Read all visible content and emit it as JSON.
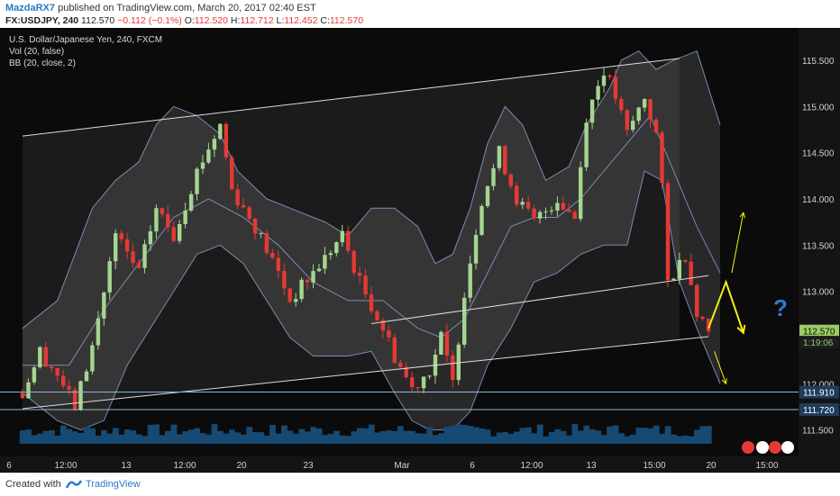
{
  "header": {
    "author": "MazdaRX7",
    "published_text": "published on TradingView.com, March 20, 2017 02:40 EST",
    "symbol": "FX:USDJPY, 240",
    "last": "112.570",
    "change": "−0.112 (−0.1%)",
    "o_label": "O:",
    "o": "112.520",
    "h_label": "H:",
    "h": "112.712",
    "l_label": "L:",
    "l": "112.452",
    "c_label": "C:",
    "c": "112.570"
  },
  "legend": {
    "title": "U.S. Dollar/Japanese Yen, 240, FXCM",
    "vol": "Vol (20, false)",
    "bb": "BB (20, close, 2)"
  },
  "footer": {
    "created_with": "Created with",
    "brand": "TradingView"
  },
  "annotation": {
    "question_mark": "?"
  },
  "colors": {
    "background": "#0b0b0b",
    "bull": "#a5d68f",
    "bear": "#e53935",
    "band": "#7389b5",
    "volume": "#174a73",
    "channel": "#dcdcdc",
    "arrow_yellow": "#f3f30c",
    "question_blue": "#2f7ccc",
    "price_badge": "#9ccc65"
  },
  "chart_data": {
    "type": "candlestick",
    "y_ticks": [
      "115.500",
      "115.000",
      "114.500",
      "114.000",
      "113.500",
      "113.000",
      "112.500",
      "112.000",
      "111.500"
    ],
    "ylim": [
      111.35,
      115.85
    ],
    "x_ticks": [
      "6",
      "12:00",
      "13",
      "12:00",
      "20",
      "23",
      "Mar",
      "6",
      "12:00",
      "13",
      "15:00",
      "20",
      "15:00"
    ],
    "price_labels": [
      {
        "value": 112.57,
        "text": "112.570",
        "type": "last"
      },
      {
        "value": 112.45,
        "text": "1:19:06",
        "type": "timer"
      },
      {
        "value": 111.91,
        "text": "111.910",
        "type": "level"
      },
      {
        "value": 111.72,
        "text": "111.720",
        "type": "level"
      }
    ],
    "horizontal_levels": [
      111.91,
      111.72
    ],
    "channel_upper": [
      [
        0,
        114.68
      ],
      [
        113,
        115.52
      ]
    ],
    "channel_mid": [
      [
        60,
        112.65
      ],
      [
        118,
        113.17
      ]
    ],
    "channel_lower": [
      [
        0,
        111.73
      ],
      [
        118,
        112.51
      ]
    ],
    "close_path": [
      [
        0,
        111.9
      ],
      [
        3,
        112.35
      ],
      [
        6,
        112.1
      ],
      [
        9,
        111.75
      ],
      [
        12,
        112.4
      ],
      [
        16,
        113.6
      ],
      [
        20,
        113.2
      ],
      [
        23,
        113.9
      ],
      [
        26,
        113.6
      ],
      [
        30,
        114.3
      ],
      [
        34,
        114.8
      ],
      [
        36,
        114.1
      ],
      [
        40,
        113.7
      ],
      [
        44,
        113.2
      ],
      [
        46,
        112.9
      ],
      [
        50,
        113.2
      ],
      [
        55,
        113.6
      ],
      [
        58,
        113.1
      ],
      [
        62,
        112.6
      ],
      [
        64,
        112.3
      ],
      [
        67,
        111.95
      ],
      [
        70,
        112.15
      ],
      [
        72,
        112.5
      ],
      [
        74,
        112.0
      ],
      [
        76,
        113.0
      ],
      [
        79,
        114.0
      ],
      [
        82,
        114.5
      ],
      [
        85,
        114.0
      ],
      [
        88,
        113.75
      ],
      [
        92,
        114.0
      ],
      [
        95,
        113.8
      ],
      [
        97,
        114.9
      ],
      [
        100,
        115.4
      ],
      [
        102,
        115.1
      ],
      [
        104,
        114.7
      ],
      [
        107,
        115.1
      ],
      [
        109,
        114.7
      ],
      [
        110,
        114.1
      ],
      [
        111,
        113.1
      ],
      [
        114,
        113.4
      ],
      [
        116,
        112.8
      ],
      [
        118,
        112.57
      ]
    ],
    "bb_upper": [
      [
        0,
        112.6
      ],
      [
        6,
        112.9
      ],
      [
        12,
        113.9
      ],
      [
        16,
        114.2
      ],
      [
        20,
        114.4
      ],
      [
        23,
        114.8
      ],
      [
        26,
        115.0
      ],
      [
        30,
        114.9
      ],
      [
        34,
        114.7
      ],
      [
        37,
        114.3
      ],
      [
        42,
        114.0
      ],
      [
        46,
        113.9
      ],
      [
        52,
        113.75
      ],
      [
        56,
        113.6
      ],
      [
        60,
        113.9
      ],
      [
        64,
        113.9
      ],
      [
        68,
        113.7
      ],
      [
        71,
        113.3
      ],
      [
        74,
        113.4
      ],
      [
        77,
        113.9
      ],
      [
        80,
        114.6
      ],
      [
        83,
        115.0
      ],
      [
        86,
        114.8
      ],
      [
        90,
        114.2
      ],
      [
        94,
        114.35
      ],
      [
        97,
        114.8
      ],
      [
        101,
        115.2
      ],
      [
        103,
        115.5
      ],
      [
        106,
        115.6
      ],
      [
        109,
        115.4
      ],
      [
        112,
        115.5
      ],
      [
        116,
        115.6
      ],
      [
        120,
        114.8
      ]
    ],
    "bb_lower": [
      [
        0,
        111.9
      ],
      [
        6,
        111.6
      ],
      [
        10,
        111.5
      ],
      [
        14,
        111.6
      ],
      [
        18,
        112.2
      ],
      [
        23,
        112.7
      ],
      [
        26,
        113.0
      ],
      [
        30,
        113.4
      ],
      [
        34,
        113.5
      ],
      [
        38,
        113.3
      ],
      [
        42,
        112.9
      ],
      [
        46,
        112.5
      ],
      [
        50,
        112.3
      ],
      [
        56,
        112.3
      ],
      [
        60,
        112.35
      ],
      [
        64,
        111.9
      ],
      [
        67,
        111.6
      ],
      [
        70,
        111.5
      ],
      [
        74,
        111.5
      ],
      [
        77,
        111.7
      ],
      [
        80,
        112.2
      ],
      [
        84,
        112.6
      ],
      [
        88,
        113.1
      ],
      [
        92,
        113.2
      ],
      [
        96,
        113.4
      ],
      [
        100,
        113.5
      ],
      [
        104,
        113.5
      ],
      [
        107,
        114.3
      ],
      [
        110,
        114.2
      ],
      [
        113,
        113.1
      ],
      [
        116,
        112.6
      ],
      [
        120,
        112.0
      ]
    ],
    "bb_mid": [
      [
        0,
        112.2
      ],
      [
        8,
        112.2
      ],
      [
        14,
        112.8
      ],
      [
        20,
        113.3
      ],
      [
        26,
        113.8
      ],
      [
        32,
        114.0
      ],
      [
        38,
        113.8
      ],
      [
        44,
        113.5
      ],
      [
        50,
        113.1
      ],
      [
        56,
        112.9
      ],
      [
        62,
        112.9
      ],
      [
        68,
        112.6
      ],
      [
        72,
        112.5
      ],
      [
        76,
        112.7
      ],
      [
        80,
        113.2
      ],
      [
        84,
        113.7
      ],
      [
        88,
        113.8
      ],
      [
        92,
        113.8
      ],
      [
        96,
        114.0
      ],
      [
        100,
        114.3
      ],
      [
        104,
        114.6
      ],
      [
        108,
        114.9
      ],
      [
        112,
        114.3
      ],
      [
        116,
        113.7
      ],
      [
        120,
        113.2
      ]
    ],
    "arrows": [
      {
        "points": [
          [
            118,
            112.6
          ],
          [
            121,
            113.1
          ],
          [
            124,
            112.55
          ]
        ],
        "color": "yellow",
        "width": 2
      },
      {
        "points": [
          [
            122,
            113.2
          ],
          [
            124,
            113.85
          ]
        ],
        "color": "yellow",
        "width": 1
      },
      {
        "points": [
          [
            119,
            112.35
          ],
          [
            121,
            112.0
          ]
        ],
        "color": "yellow",
        "width": 1
      }
    ]
  }
}
